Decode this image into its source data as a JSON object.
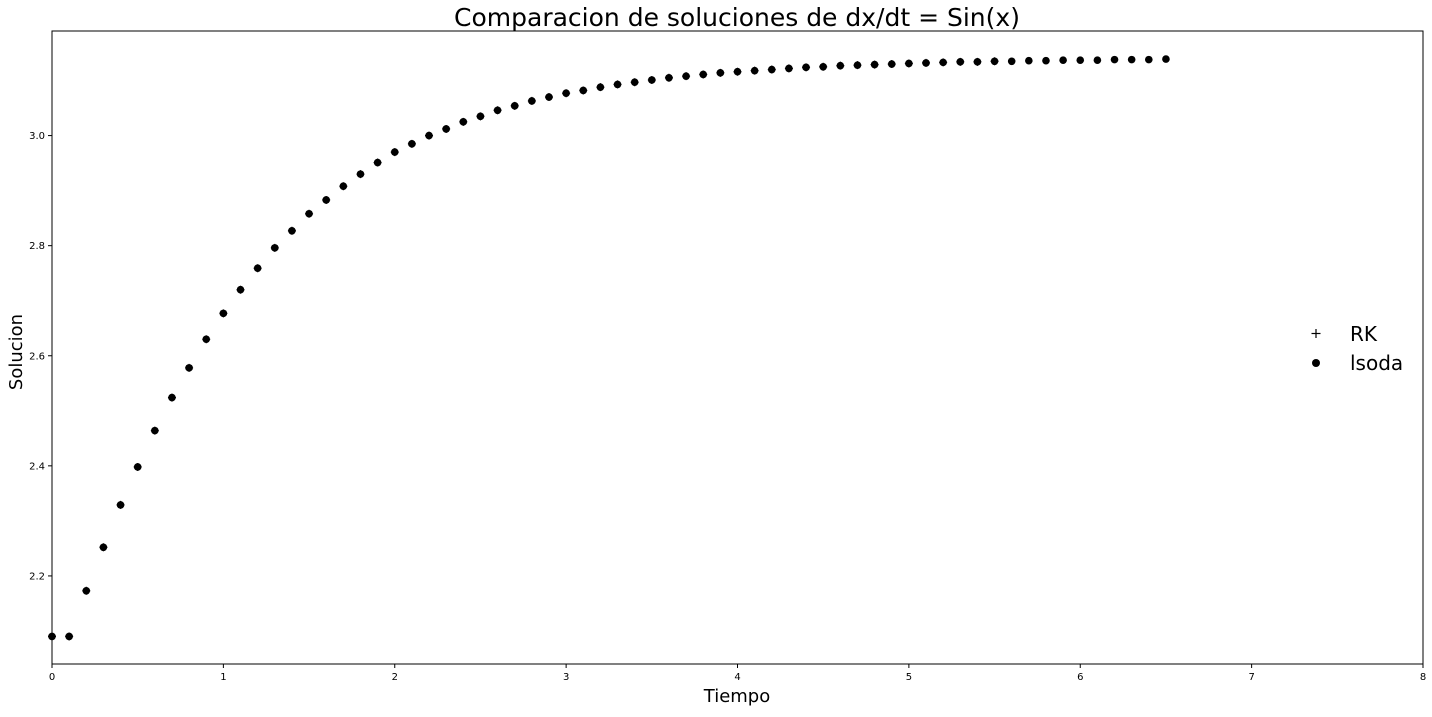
{
  "chart_data": {
    "type": "scatter",
    "title": "Comparacion de soluciones de dx/dt = Sin(x)",
    "xlabel": "Tiempo",
    "ylabel": "Solucion",
    "xlim": [
      0,
      8
    ],
    "ylim": [
      2.04,
      3.19
    ],
    "xticks": [
      0,
      1,
      2,
      3,
      4,
      5,
      6,
      7,
      8
    ],
    "yticks": [
      2.2,
      2.4,
      2.6,
      2.8,
      3.0
    ],
    "ytick_labels": [
      "2.2",
      "2.4",
      "2.6",
      "2.8",
      "3.0"
    ],
    "grid": false,
    "legend_position": "right",
    "series": [
      {
        "name": "RK",
        "marker": "plus",
        "color": "#000000",
        "x": [
          0.0,
          0.1,
          0.2,
          0.3,
          0.4,
          0.5,
          0.6,
          0.7,
          0.8,
          0.9,
          1.0,
          1.1,
          1.2,
          1.3,
          1.4,
          1.5,
          1.6,
          1.7,
          1.8,
          1.9,
          2.0,
          2.1,
          2.2,
          2.3,
          2.4,
          2.5,
          2.6,
          2.7,
          2.8,
          2.9,
          3.0,
          3.1,
          3.2,
          3.3,
          3.4,
          3.5,
          3.6,
          3.7,
          3.8,
          3.9,
          4.0,
          4.1,
          4.2,
          4.3,
          4.4,
          4.5,
          4.6,
          4.7,
          4.8,
          4.9,
          5.0,
          5.1,
          5.2,
          5.3,
          5.4,
          5.5
        ],
        "y": [
          2.09,
          2.09,
          2.173,
          2.252,
          2.329,
          2.398,
          2.464,
          2.524,
          2.578,
          2.63,
          2.677,
          2.72,
          2.759,
          2.796,
          2.827,
          2.858,
          2.883,
          2.908,
          2.93,
          2.951,
          2.97,
          2.985,
          3.0,
          3.012,
          3.025,
          3.035,
          3.046,
          3.054,
          3.063,
          3.07,
          3.077,
          3.082,
          3.088,
          3.093,
          3.097,
          3.101,
          3.105,
          3.108,
          3.111,
          3.114,
          3.116,
          3.118,
          3.12,
          3.122,
          3.124,
          3.125,
          3.127,
          3.128,
          3.129,
          3.13,
          3.131,
          3.132,
          3.133,
          3.134,
          3.134,
          3.135
        ]
      },
      {
        "name": "lsoda",
        "marker": "circle",
        "color": "#000000",
        "x": [
          0.0,
          0.1,
          0.2,
          0.3,
          0.4,
          0.5,
          0.6,
          0.7,
          0.8,
          0.9,
          1.0,
          1.1,
          1.2,
          1.3,
          1.4,
          1.5,
          1.6,
          1.7,
          1.8,
          1.9,
          2.0,
          2.1,
          2.2,
          2.3,
          2.4,
          2.5,
          2.6,
          2.7,
          2.8,
          2.9,
          3.0,
          3.1,
          3.2,
          3.3,
          3.4,
          3.5,
          3.6,
          3.7,
          3.8,
          3.9,
          4.0,
          4.1,
          4.2,
          4.3,
          4.4,
          4.5,
          4.6,
          4.7,
          4.8,
          4.9,
          5.0,
          5.1,
          5.2,
          5.3,
          5.4,
          5.5,
          5.6,
          5.7,
          5.8,
          5.9,
          6.0,
          6.1,
          6.2,
          6.3,
          6.4,
          6.5
        ],
        "y": [
          2.09,
          2.09,
          2.173,
          2.252,
          2.329,
          2.398,
          2.464,
          2.524,
          2.578,
          2.63,
          2.677,
          2.72,
          2.759,
          2.796,
          2.827,
          2.858,
          2.883,
          2.908,
          2.93,
          2.951,
          2.97,
          2.985,
          3.0,
          3.012,
          3.025,
          3.035,
          3.046,
          3.054,
          3.063,
          3.07,
          3.077,
          3.082,
          3.088,
          3.093,
          3.097,
          3.101,
          3.105,
          3.108,
          3.111,
          3.114,
          3.116,
          3.118,
          3.12,
          3.122,
          3.124,
          3.125,
          3.127,
          3.128,
          3.129,
          3.13,
          3.131,
          3.132,
          3.133,
          3.134,
          3.134,
          3.135,
          3.135,
          3.136,
          3.136,
          3.137,
          3.137,
          3.137,
          3.138,
          3.138,
          3.138,
          3.139
        ]
      }
    ]
  }
}
